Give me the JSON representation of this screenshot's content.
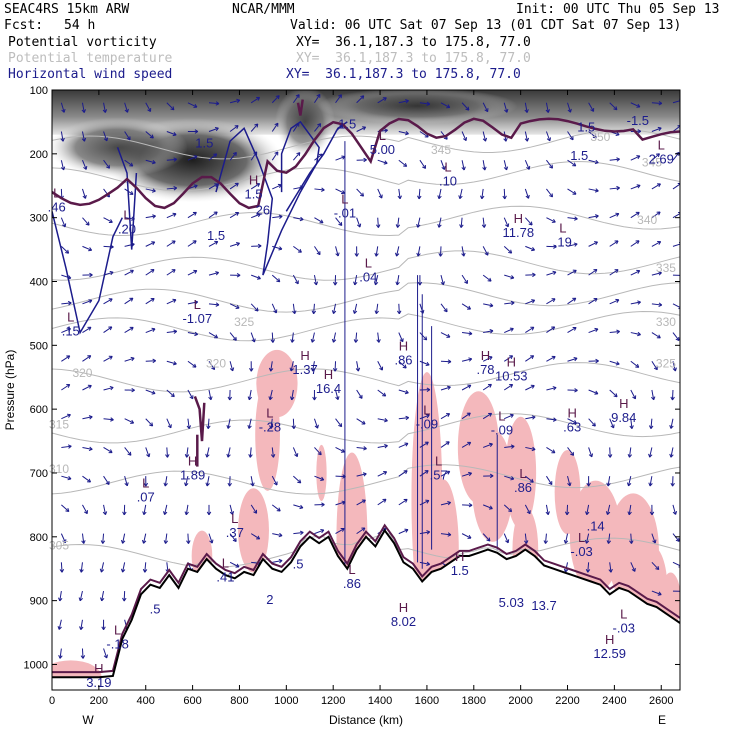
{
  "header": {
    "model": "SEAC4RS 15km ARW",
    "org": "NCAR/MMM",
    "init": "Init: 00 UTC Thu 05 Sep 13",
    "fcst_label": "Fcst:",
    "fcst_value": "54 h",
    "valid": "Valid: 06 UTC Sat 07 Sep 13 (01 CDT Sat 07 Sep 13)",
    "fields": [
      {
        "name": "Potential vorticity",
        "xsec": "XY=  36.1,187.3 to 175.8, 77.0",
        "color": "#000000"
      },
      {
        "name": "Potential temperature",
        "xsec": "XY=  36.1,187.3 to 175.8, 77.0",
        "color": "#bdbdbd"
      },
      {
        "name": "Horizontal wind speed",
        "xsec": "XY=  36.1,187.3 to 175.8, 77.0",
        "color": "#1c1c8c"
      }
    ]
  },
  "chart_data": {
    "type": "cross-section",
    "xlabel": "Distance (km)",
    "ylabel": "Pressure (hPa)",
    "xlim": [
      0,
      2680
    ],
    "ylim": [
      1040,
      100
    ],
    "x_ticks": [
      "0",
      "200",
      "400",
      "600",
      "800",
      "1000",
      "1200",
      "1400",
      "1600",
      "1800",
      "2000",
      "2200",
      "2400",
      "2600"
    ],
    "y_ticks": [
      "100",
      "200",
      "300",
      "400",
      "500",
      "600",
      "700",
      "800",
      "900",
      "1000"
    ],
    "x_ends": {
      "left": "W",
      "right": "E"
    },
    "colors": {
      "pv": "#5a1a4a",
      "theta": "#b8b8b8",
      "wind": "#1c1c8c",
      "terrain": "#000000",
      "pink": "#f4b8bc"
    },
    "terrain": {
      "x": [
        0,
        100,
        200,
        260,
        300,
        340,
        380,
        420,
        460,
        500,
        540,
        580,
        620,
        660,
        700,
        740,
        780,
        820,
        860,
        900,
        940,
        980,
        1020,
        1060,
        1100,
        1140,
        1180,
        1220,
        1260,
        1300,
        1340,
        1380,
        1420,
        1460,
        1500,
        1540,
        1580,
        1620,
        1660,
        1700,
        1740,
        1780,
        1820,
        1860,
        1900,
        1940,
        1980,
        2020,
        2060,
        2100,
        2140,
        2180,
        2220,
        2260,
        2300,
        2340,
        2380,
        2420,
        2460,
        2500,
        2540,
        2580,
        2620,
        2660,
        2680
      ],
      "p": [
        1020,
        1020,
        1020,
        1018,
        960,
        930,
        890,
        875,
        880,
        860,
        880,
        850,
        855,
        835,
        850,
        860,
        865,
        855,
        860,
        835,
        850,
        855,
        840,
        815,
        800,
        810,
        800,
        830,
        850,
        820,
        800,
        815,
        790,
        810,
        840,
        850,
        870,
        855,
        850,
        840,
        830,
        830,
        825,
        820,
        825,
        835,
        830,
        820,
        830,
        845,
        850,
        855,
        860,
        865,
        870,
        875,
        890,
        880,
        885,
        895,
        905,
        910,
        920,
        930,
        935
      ]
    },
    "wind_fill_top": [
      {
        "x": [
          0,
          2680
        ],
        "p_top": 100,
        "p_bottom": 165,
        "shade": 0.7
      },
      {
        "x": [
          380,
          820
        ],
        "p_top": 170,
        "p_bottom": 270,
        "shade": 0.75
      }
    ],
    "theta_contours": [
      {
        "value": "305",
        "p": 830
      },
      {
        "value": "310",
        "p": 715
      },
      {
        "value": "315",
        "p": 635
      },
      {
        "value": "320",
        "p": 555
      },
      {
        "value": "325",
        "p": 475
      },
      {
        "value": "330",
        "p": 430
      },
      {
        "value": "335",
        "p": 380
      },
      {
        "value": "340",
        "p": 310
      },
      {
        "value": "345",
        "p": 240
      },
      {
        "value": "350",
        "p": 190
      }
    ],
    "theta_labels": [
      {
        "value": "305",
        "x": 30,
        "p": 820
      },
      {
        "value": "310",
        "x": 30,
        "p": 700
      },
      {
        "value": "315",
        "x": 30,
        "p": 630
      },
      {
        "value": "320",
        "x": 130,
        "p": 550
      },
      {
        "value": "320",
        "x": 700,
        "p": 535
      },
      {
        "value": "325",
        "x": 820,
        "p": 470
      },
      {
        "value": "325",
        "x": 2620,
        "p": 535
      },
      {
        "value": "330",
        "x": 2620,
        "p": 470
      },
      {
        "value": "335",
        "x": 2620,
        "p": 385
      },
      {
        "value": "340",
        "x": 2540,
        "p": 310
      },
      {
        "value": "345",
        "x": 2560,
        "p": 220
      },
      {
        "value": "345",
        "x": 1660,
        "p": 200
      },
      {
        "value": "350",
        "x": 2340,
        "p": 180
      }
    ],
    "extrema": [
      {
        "kind": "L",
        "value": ".46",
        "x": 20,
        "p": 290
      },
      {
        "kind": "L",
        "value": ".20",
        "x": 320,
        "p": 325
      },
      {
        "kind": "H",
        "value": "1.5",
        "x": 860,
        "p": 270
      },
      {
        "kind": "",
        "value": "26",
        "x": 900,
        "p": 295
      },
      {
        "kind": "",
        "value": "1.5",
        "x": 700,
        "p": 335
      },
      {
        "kind": "L",
        "value": "-.01",
        "x": 1250,
        "p": 300
      },
      {
        "kind": "L",
        "value": "5.00",
        "x": 1410,
        "p": 200
      },
      {
        "kind": "L",
        "value": ".10",
        "x": 1690,
        "p": 250
      },
      {
        "kind": "L",
        "value": ".04",
        "x": 1350,
        "p": 400
      },
      {
        "kind": "H",
        "value": "11.78",
        "x": 1990,
        "p": 330
      },
      {
        "kind": "L",
        "value": ".19",
        "x": 2180,
        "p": 345
      },
      {
        "kind": "",
        "value": "-1.5",
        "x": 2500,
        "p": 155
      },
      {
        "kind": "L",
        "value": "2.69",
        "x": 2600,
        "p": 215
      },
      {
        "kind": "",
        "value": "1.5",
        "x": 2280,
        "p": 165
      },
      {
        "kind": "L",
        "value": ".15",
        "x": 80,
        "p": 485
      },
      {
        "kind": "L",
        "value": "-1.07",
        "x": 620,
        "p": 465
      },
      {
        "kind": "H",
        "value": "1.37",
        "x": 1080,
        "p": 545
      },
      {
        "kind": "H",
        "value": "16.4",
        "x": 1180,
        "p": 575
      },
      {
        "kind": "H",
        "value": ".86",
        "x": 1500,
        "p": 530
      },
      {
        "kind": "H",
        "value": ".78",
        "x": 1850,
        "p": 545
      },
      {
        "kind": "H",
        "value": "10.53",
        "x": 1960,
        "p": 555
      },
      {
        "kind": "L",
        "value": "-.28",
        "x": 930,
        "p": 635
      },
      {
        "kind": "L",
        "value": "-.09",
        "x": 1600,
        "p": 630
      },
      {
        "kind": "L",
        "value": "-.09",
        "x": 1920,
        "p": 640
      },
      {
        "kind": "H",
        "value": ".63",
        "x": 2220,
        "p": 635
      },
      {
        "kind": "H",
        "value": "9.84",
        "x": 2440,
        "p": 620
      },
      {
        "kind": "H",
        "value": "1.89",
        "x": 600,
        "p": 710
      },
      {
        "kind": "L",
        "value": ".57",
        "x": 1650,
        "p": 710
      },
      {
        "kind": "L",
        "value": ".86",
        "x": 2010,
        "p": 730
      },
      {
        "kind": "L",
        "value": ".07",
        "x": 400,
        "p": 745
      },
      {
        "kind": "L",
        "value": ".37",
        "x": 780,
        "p": 800
      },
      {
        "kind": "L",
        "value": "-.03",
        "x": 2260,
        "p": 830
      },
      {
        "kind": "",
        "value": ".14",
        "x": 2320,
        "p": 790
      },
      {
        "kind": "L",
        "value": ".41",
        "x": 740,
        "p": 870
      },
      {
        "kind": "L",
        "value": ".86",
        "x": 1280,
        "p": 880
      },
      {
        "kind": "H",
        "value": "8.02",
        "x": 1500,
        "p": 940
      },
      {
        "kind": "H",
        "value": "1.5",
        "x": 1740,
        "p": 860
      },
      {
        "kind": "",
        "value": "5.03",
        "x": 1960,
        "p": 910
      },
      {
        "kind": "",
        "value": "13.7",
        "x": 2100,
        "p": 915
      },
      {
        "kind": "L",
        "value": "-.03",
        "x": 2440,
        "p": 950
      },
      {
        "kind": "H",
        "value": "12.59",
        "x": 2380,
        "p": 990
      },
      {
        "kind": "L",
        "value": "-.18",
        "x": 280,
        "p": 975
      },
      {
        "kind": "H",
        "value": "3.19",
        "x": 200,
        "p": 1035
      },
      {
        "kind": "",
        "value": ".5",
        "x": 440,
        "p": 920
      },
      {
        "kind": "",
        "value": "2",
        "x": 930,
        "p": 905
      },
      {
        "kind": "",
        "value": ".5",
        "x": 1050,
        "p": 850
      },
      {
        "kind": "",
        "value": "1.5",
        "x": 650,
        "p": 190
      },
      {
        "kind": "",
        "value": "1.5",
        "x": 1260,
        "p": 160
      },
      {
        "kind": "",
        "value": "1.5",
        "x": 2250,
        "p": 210
      }
    ]
  }
}
